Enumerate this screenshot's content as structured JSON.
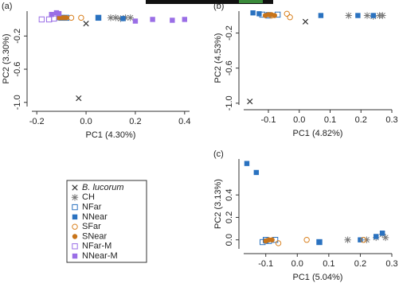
{
  "chart_data": [
    {
      "type": "scatter",
      "panel_label": "(a)",
      "xlabel": "PC1 (4.30%)",
      "ylabel": "PC2 (3.30%)",
      "xlim": [
        -0.22,
        0.42
      ],
      "ylim": [
        -1.05,
        0.1
      ],
      "xticks": [
        -0.2,
        {
          "value": 0,
          "label": "0.0"
        },
        0.2,
        0.4
      ],
      "yticks": [
        {
          "value": -1,
          "label": "-1.0"
        },
        -0.6,
        -0.2
      ],
      "series": [
        {
          "name": "B. lucorum",
          "color": "#333333",
          "marker": "x",
          "x": [
            -0.03,
            0.0
          ],
          "y": [
            -0.95,
            -0.05
          ]
        },
        {
          "name": "CH",
          "color": "#777777",
          "marker": "asterisk",
          "x": [
            0.1,
            0.12,
            0.14,
            0.16,
            0.18
          ],
          "y": [
            0.02,
            0.02,
            0.01,
            0.02,
            0.02
          ]
        },
        {
          "name": "NFar",
          "color": "#2a72c0",
          "marker": "open-square",
          "x": [
            -0.1,
            -0.08,
            0.05
          ],
          "y": [
            0.02,
            0.02,
            0.02
          ]
        },
        {
          "name": "NNear",
          "color": "#2a72c0",
          "marker": "square",
          "x": [
            -0.11,
            -0.09,
            0.05,
            0.15
          ],
          "y": [
            0.02,
            0.02,
            0.02,
            0.01
          ]
        },
        {
          "name": "SFar",
          "color": "#d9801e",
          "marker": "open-circle",
          "x": [
            -0.06,
            -0.02
          ],
          "y": [
            0.02,
            0.02
          ]
        },
        {
          "name": "SNear",
          "color": "#c8741a",
          "marker": "circle",
          "x": [
            -0.11,
            -0.1,
            -0.09,
            -0.08
          ],
          "y": [
            0.02,
            0.02,
            0.02,
            0.02
          ]
        },
        {
          "name": "NFar-M",
          "color": "#9a6ee6",
          "marker": "open-square",
          "x": [
            -0.18,
            -0.15,
            -0.13
          ],
          "y": [
            0.0,
            0.0,
            0.01
          ]
        },
        {
          "name": "NNear-M",
          "color": "#9a6ee6",
          "marker": "square",
          "x": [
            -0.14,
            -0.12,
            -0.11,
            0.2,
            0.27,
            0.35,
            0.4
          ],
          "y": [
            0.06,
            0.08,
            0.07,
            -0.02,
            0.0,
            -0.01,
            0.0
          ]
        }
      ]
    },
    {
      "type": "scatter",
      "panel_label": "(b)",
      "xlabel": "PC1 (4.82%)",
      "ylabel": "PC2 (4.53%)",
      "xlim": [
        -0.18,
        0.3
      ],
      "ylim": [
        -1.02,
        0.05
      ],
      "xticks": [
        -0.1,
        {
          "value": 0,
          "label": "0.0"
        },
        0.1,
        0.2,
        0.3
      ],
      "yticks": [
        {
          "value": -1,
          "label": "-1.0"
        },
        -0.6,
        -0.2
      ],
      "series": [
        {
          "color": "#333333",
          "marker": "x",
          "x": [
            -0.16,
            0.02
          ],
          "y": [
            -0.98,
            -0.07
          ]
        },
        {
          "color": "#777777",
          "marker": "asterisk",
          "x": [
            0.16,
            0.22,
            0.24,
            0.26,
            0.27
          ],
          "y": [
            0.0,
            0.0,
            -0.01,
            0.0,
            0.0
          ]
        },
        {
          "color": "#2a72c0",
          "marker": "open-square",
          "x": [
            -0.12,
            -0.1,
            -0.07
          ],
          "y": [
            0.01,
            0.0,
            0.01
          ]
        },
        {
          "color": "#2a72c0",
          "marker": "square",
          "x": [
            -0.15,
            -0.13,
            -0.1,
            0.07,
            0.19,
            0.24
          ],
          "y": [
            0.03,
            0.02,
            0.01,
            0.0,
            0.0,
            0.0
          ]
        },
        {
          "color": "#d9801e",
          "marker": "open-circle",
          "x": [
            -0.09,
            -0.04,
            -0.03
          ],
          "y": [
            0.0,
            0.02,
            -0.02
          ]
        },
        {
          "color": "#c8741a",
          "marker": "circle",
          "x": [
            -0.11,
            -0.1,
            -0.09,
            -0.08
          ],
          "y": [
            0.0,
            0.01,
            0.01,
            0.0
          ]
        }
      ]
    },
    {
      "type": "scatter",
      "panel_label": "(c)",
      "xlabel": "PC1 (5.04%)",
      "ylabel": "PC2 (3.13%)",
      "xlim": [
        -0.17,
        0.3
      ],
      "ylim": [
        -0.08,
        0.72
      ],
      "xticks": [
        -0.1,
        {
          "value": 0,
          "label": "0.0"
        },
        0.1,
        0.2,
        0.3
      ],
      "yticks": [
        {
          "value": 0,
          "label": "0.0"
        },
        0.2,
        0.4
      ],
      "series": [
        {
          "color": "#777777",
          "marker": "asterisk",
          "x": [
            0.16,
            0.22,
            0.25,
            0.27,
            0.28
          ],
          "y": [
            0.0,
            0.0,
            0.02,
            0.05,
            0.02
          ]
        },
        {
          "color": "#2a72c0",
          "marker": "open-square",
          "x": [
            -0.11,
            -0.1,
            -0.09,
            -0.07,
            0.07
          ],
          "y": [
            -0.02,
            0.0,
            -0.01,
            0.0,
            -0.02
          ]
        },
        {
          "color": "#2a72c0",
          "marker": "square",
          "x": [
            -0.16,
            -0.13,
            -0.1,
            0.07,
            0.2,
            0.25,
            0.27
          ],
          "y": [
            0.68,
            0.6,
            -0.01,
            -0.02,
            0.0,
            0.03,
            0.06
          ]
        },
        {
          "color": "#d9801e",
          "marker": "open-circle",
          "x": [
            -0.06,
            0.03,
            0.21
          ],
          "y": [
            -0.03,
            0.0,
            0.0
          ]
        },
        {
          "color": "#c8741a",
          "marker": "circle",
          "x": [
            -0.1,
            -0.09,
            -0.08
          ],
          "y": [
            -0.01,
            0.0,
            0.0
          ]
        }
      ]
    }
  ]
}
